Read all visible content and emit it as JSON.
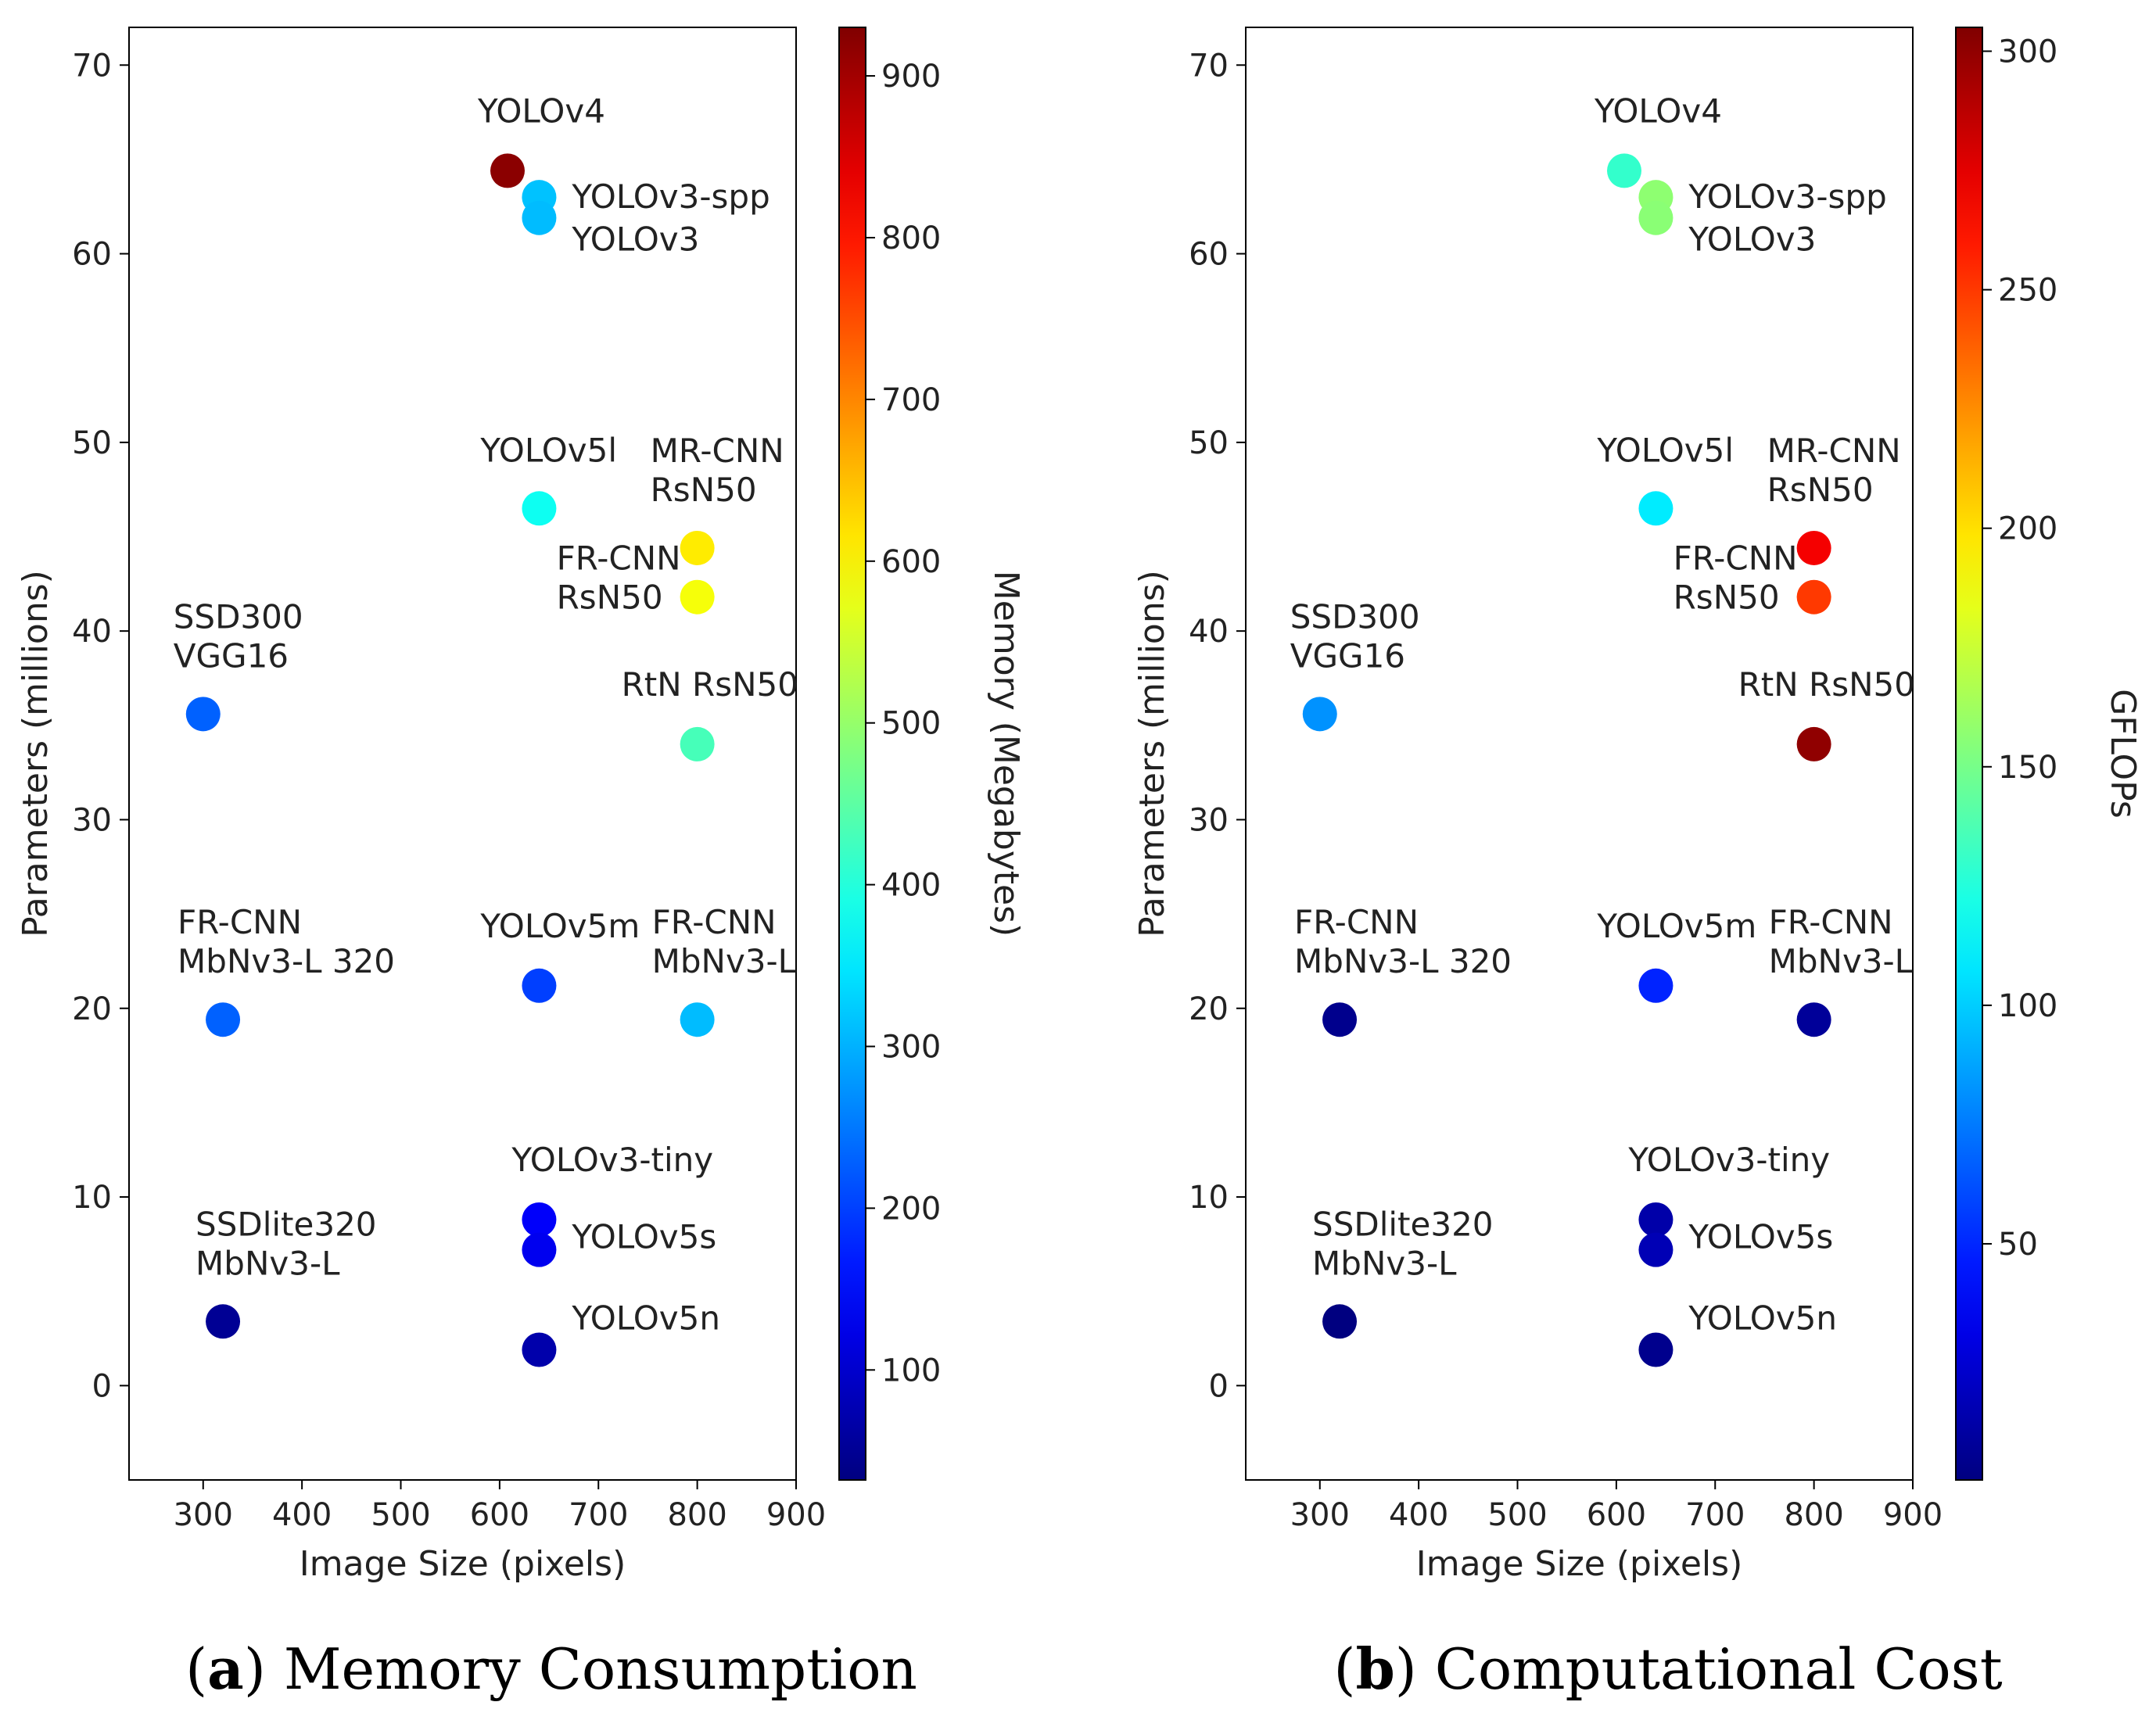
{
  "colormap": "jet",
  "chart_data": [
    {
      "type": "scatter",
      "caption_letter": "a",
      "caption_text": "Memory Consumption",
      "xlabel": "Image Size (pixels)",
      "ylabel": "Parameters (millions)",
      "xlim": [
        225,
        900
      ],
      "ylim": [
        -5,
        72
      ],
      "xticks": [
        300,
        400,
        500,
        600,
        700,
        800,
        900
      ],
      "yticks": [
        0,
        10,
        20,
        30,
        40,
        50,
        60,
        70
      ],
      "colorbar": {
        "label": "Memory (Megabytes)",
        "min": 32,
        "max": 930,
        "ticks": [
          100,
          200,
          300,
          400,
          500,
          600,
          700,
          800,
          900
        ]
      },
      "points": [
        {
          "label": [
            "YOLOv4"
          ],
          "x": 608,
          "y": 64.4,
          "c": 920
        },
        {
          "label": [
            "YOLOv3-spp"
          ],
          "x": 640,
          "y": 63.0,
          "c": 315
        },
        {
          "label": [
            "YOLOv3"
          ],
          "x": 640,
          "y": 61.9,
          "c": 310
        },
        {
          "label": [
            "YOLOv5l"
          ],
          "x": 640,
          "y": 46.5,
          "c": 380
        },
        {
          "label": [
            "MR-CNN",
            "RsN50"
          ],
          "x": 800,
          "y": 44.4,
          "c": 610
        },
        {
          "label": [
            "FR-CNN",
            "RsN50"
          ],
          "x": 800,
          "y": 41.8,
          "c": 585
        },
        {
          "label": [
            "SSD300",
            "VGG16"
          ],
          "x": 300,
          "y": 35.6,
          "c": 230
        },
        {
          "label": [
            "RtN RsN50"
          ],
          "x": 800,
          "y": 34.0,
          "c": 430
        },
        {
          "label": [
            "FR-CNN",
            "MbNv3-L 320"
          ],
          "x": 320,
          "y": 19.4,
          "c": 230
        },
        {
          "label": [
            "YOLOv5m"
          ],
          "x": 640,
          "y": 21.2,
          "c": 200
        },
        {
          "label": [
            "FR-CNN",
            "MbNv3-L"
          ],
          "x": 800,
          "y": 19.4,
          "c": 310
        },
        {
          "label": [
            "YOLOv3-tiny"
          ],
          "x": 640,
          "y": 8.8,
          "c": 140
        },
        {
          "label": [
            "YOLOv5s"
          ],
          "x": 640,
          "y": 7.2,
          "c": 130
        },
        {
          "label": [
            "SSDlite320",
            "MbNv3-L"
          ],
          "x": 320,
          "y": 3.4,
          "c": 50
        },
        {
          "label": [
            "YOLOv5n"
          ],
          "x": 640,
          "y": 1.9,
          "c": 70
        }
      ]
    },
    {
      "type": "scatter",
      "caption_letter": "b",
      "caption_text": "Computational Cost",
      "xlabel": "Image Size (pixels)",
      "ylabel": "Parameters (millions)",
      "xlim": [
        225,
        900
      ],
      "ylim": [
        -5,
        72
      ],
      "xticks": [
        300,
        400,
        500,
        600,
        700,
        800,
        900
      ],
      "yticks": [
        0,
        10,
        20,
        30,
        40,
        50,
        60,
        70
      ],
      "colorbar": {
        "label": "GFLOPs",
        "min": 0.5,
        "max": 305,
        "ticks": [
          50,
          100,
          150,
          200,
          250,
          300
        ]
      },
      "points": [
        {
          "label": [
            "YOLOv4"
          ],
          "x": 608,
          "y": 64.4,
          "c": 130
        },
        {
          "label": [
            "YOLOv3-spp"
          ],
          "x": 640,
          "y": 63.0,
          "c": 157
        },
        {
          "label": [
            "YOLOv3"
          ],
          "x": 640,
          "y": 61.9,
          "c": 156
        },
        {
          "label": [
            "YOLOv5l"
          ],
          "x": 640,
          "y": 46.5,
          "c": 109
        },
        {
          "label": [
            "MR-CNN",
            "RsN50"
          ],
          "x": 800,
          "y": 44.4,
          "c": 270
        },
        {
          "label": [
            "FR-CNN",
            "RsN50"
          ],
          "x": 800,
          "y": 41.8,
          "c": 250
        },
        {
          "label": [
            "SSD300",
            "VGG16"
          ],
          "x": 300,
          "y": 35.6,
          "c": 82
        },
        {
          "label": [
            "RtN RsN50"
          ],
          "x": 800,
          "y": 34.0,
          "c": 300
        },
        {
          "label": [
            "FR-CNN",
            "MbNv3-L 320"
          ],
          "x": 320,
          "y": 19.4,
          "c": 4.5
        },
        {
          "label": [
            "YOLOv5m"
          ],
          "x": 640,
          "y": 21.2,
          "c": 49
        },
        {
          "label": [
            "FR-CNN",
            "MbNv3-L"
          ],
          "x": 800,
          "y": 19.4,
          "c": 8
        },
        {
          "label": [
            "YOLOv3-tiny"
          ],
          "x": 640,
          "y": 8.8,
          "c": 13
        },
        {
          "label": [
            "YOLOv5s"
          ],
          "x": 640,
          "y": 7.2,
          "c": 16.5
        },
        {
          "label": [
            "SSDlite320",
            "MbNv3-L"
          ],
          "x": 320,
          "y": 3.4,
          "c": 0.6
        },
        {
          "label": [
            "YOLOv5n"
          ],
          "x": 640,
          "y": 1.9,
          "c": 4.5
        }
      ]
    }
  ]
}
